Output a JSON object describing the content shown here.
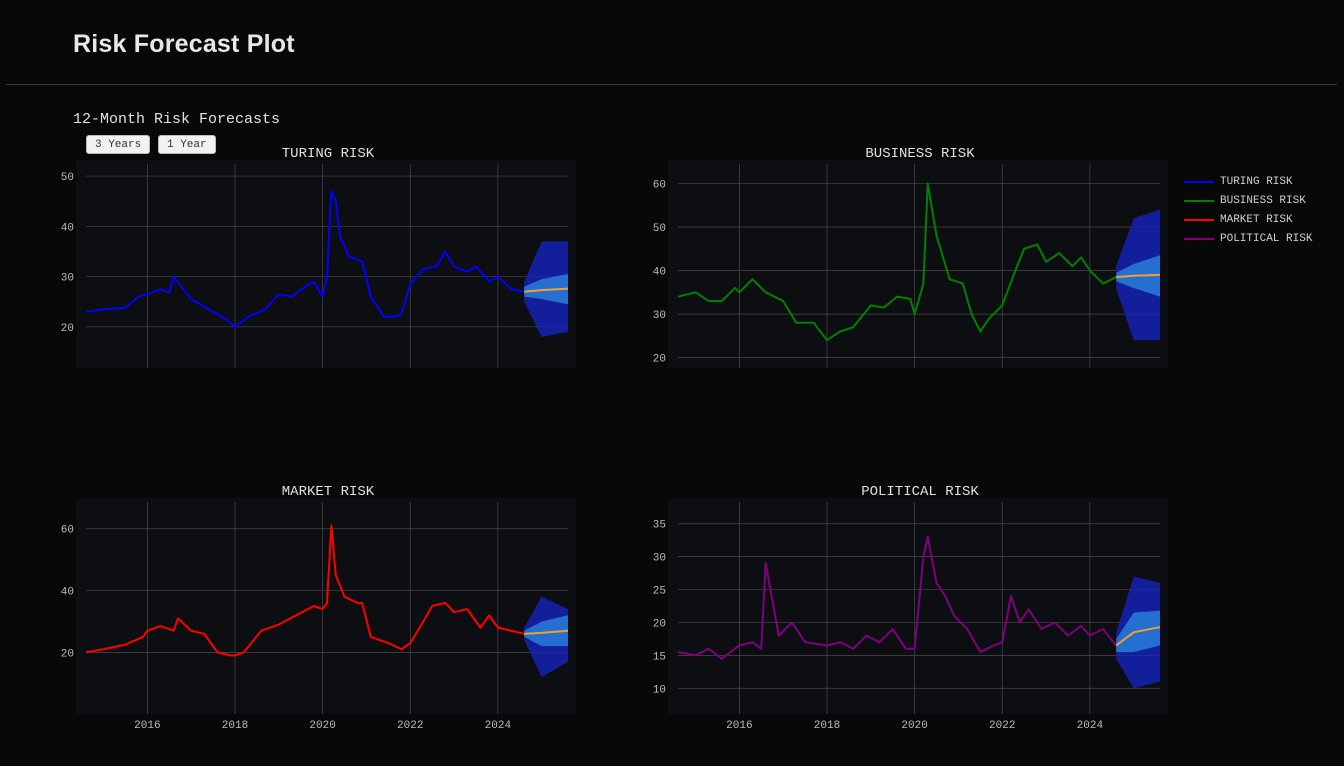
{
  "header": {
    "title": "Risk Forecast Plot"
  },
  "section": {
    "title": "12-Month Risk Forecasts"
  },
  "range_buttons": {
    "three_years": "3 Years",
    "one_year": "1 Year"
  },
  "colors": {
    "background": "#080808",
    "plot_background": "#0d0e12",
    "grid": "#4a4a4a",
    "forecast_median": "#f0a030",
    "forecast_band_inner": "#2b8be0",
    "forecast_band_outer": "#1626c8"
  },
  "legend": [
    {
      "label": "TURING RISK",
      "color": "#0000ff"
    },
    {
      "label": "BUSINESS RISK",
      "color": "#008000"
    },
    {
      "label": "MARKET RISK",
      "color": "#ff0000"
    },
    {
      "label": "POLITICAL RISK",
      "color": "#800080"
    }
  ],
  "chart_data": [
    {
      "type": "line",
      "title": "TURING RISK",
      "color": "#0000ff",
      "xlim": [
        2014.6,
        2025.6
      ],
      "ylim": [
        13,
        52
      ],
      "yticks": [
        20,
        30,
        40,
        50
      ],
      "xticks": [
        2016,
        2018,
        2020,
        2022,
        2024
      ],
      "show_xticks": false,
      "grid": true,
      "x": [
        2014.6,
        2015.0,
        2015.5,
        2015.8,
        2016.0,
        2016.3,
        2016.5,
        2016.6,
        2017.0,
        2017.5,
        2017.8,
        2018.0,
        2018.3,
        2018.7,
        2019.0,
        2019.3,
        2019.6,
        2019.8,
        2020.0,
        2020.1,
        2020.2,
        2020.3,
        2020.4,
        2020.6,
        2020.9,
        2021.1,
        2021.4,
        2021.6,
        2021.8,
        2022.0,
        2022.3,
        2022.6,
        2022.8,
        2023.0,
        2023.3,
        2023.5,
        2023.8,
        2024.0,
        2024.3,
        2024.6
      ],
      "values": [
        23,
        23.5,
        23.8,
        26,
        26.5,
        27.5,
        26.8,
        30,
        25.5,
        23,
        21.5,
        20,
        22,
        23.5,
        26.5,
        26,
        28,
        29,
        26,
        30,
        47,
        45,
        38,
        34,
        33,
        26,
        22,
        22,
        22.5,
        28.5,
        31.5,
        32,
        35,
        32,
        31,
        32,
        29,
        30,
        27.5,
        27
      ],
      "forecast": {
        "x": [
          2024.6,
          2025.0,
          2025.6
        ],
        "median": [
          27,
          27.3,
          27.6
        ],
        "inner_lo": [
          26,
          25.5,
          24.5
        ],
        "inner_hi": [
          28,
          29.5,
          30.5
        ],
        "outer_lo": [
          25,
          18,
          19
        ],
        "outer_hi": [
          29,
          37,
          37
        ]
      }
    },
    {
      "type": "line",
      "title": "BUSINESS RISK",
      "color": "#008000",
      "xlim": [
        2014.6,
        2025.6
      ],
      "ylim": [
        19,
        64
      ],
      "yticks": [
        20,
        30,
        40,
        50,
        60
      ],
      "xticks": [
        2016,
        2018,
        2020,
        2022,
        2024
      ],
      "show_xticks": false,
      "grid": true,
      "x": [
        2014.6,
        2015.0,
        2015.3,
        2015.6,
        2015.9,
        2016.0,
        2016.3,
        2016.6,
        2017.0,
        2017.3,
        2017.7,
        2018.0,
        2018.3,
        2018.6,
        2019.0,
        2019.3,
        2019.6,
        2019.9,
        2020.0,
        2020.2,
        2020.3,
        2020.5,
        2020.8,
        2021.1,
        2021.3,
        2021.5,
        2021.7,
        2022.0,
        2022.3,
        2022.5,
        2022.8,
        2023.0,
        2023.3,
        2023.6,
        2023.8,
        2024.0,
        2024.3,
        2024.6
      ],
      "values": [
        34,
        35,
        33,
        33,
        36,
        35,
        38,
        35,
        33,
        28,
        28,
        24,
        26,
        27,
        32,
        31.5,
        34,
        33.5,
        30,
        37,
        60,
        48,
        38,
        37,
        30,
        26,
        29,
        32,
        40,
        45,
        46,
        42,
        44,
        41,
        43,
        40,
        37,
        38.5
      ],
      "forecast": {
        "x": [
          2024.6,
          2025.0,
          2025.6
        ],
        "median": [
          38.5,
          38.8,
          39
        ],
        "inner_lo": [
          37.5,
          36,
          34
        ],
        "inner_hi": [
          39.5,
          41.5,
          43.5
        ],
        "outer_lo": [
          36,
          24,
          24
        ],
        "outer_hi": [
          41,
          52,
          54
        ]
      }
    },
    {
      "type": "line",
      "title": "MARKET RISK",
      "color": "#ff0000",
      "xlim": [
        2014.6,
        2025.6
      ],
      "ylim": [
        2,
        68
      ],
      "yticks": [
        20,
        40,
        60
      ],
      "xticks": [
        2016,
        2018,
        2020,
        2022,
        2024
      ],
      "show_xticks": true,
      "grid": true,
      "x": [
        2014.6,
        2015.0,
        2015.5,
        2015.9,
        2016.0,
        2016.3,
        2016.6,
        2016.7,
        2017.0,
        2017.3,
        2017.6,
        2017.9,
        2018.0,
        2018.2,
        2018.6,
        2019.0,
        2019.4,
        2019.8,
        2020.0,
        2020.1,
        2020.2,
        2020.3,
        2020.5,
        2020.8,
        2020.9,
        2021.1,
        2021.5,
        2021.8,
        2022.0,
        2022.3,
        2022.5,
        2022.8,
        2023.0,
        2023.3,
        2023.6,
        2023.8,
        2024.0,
        2024.3,
        2024.6
      ],
      "values": [
        20,
        21,
        22.5,
        25,
        27,
        28.5,
        27,
        31,
        27,
        26,
        20,
        19,
        19,
        20,
        27,
        29,
        32,
        35,
        34,
        36,
        61,
        45,
        38,
        36,
        36,
        25,
        23,
        21,
        23,
        30,
        35,
        36,
        33,
        34,
        28,
        32,
        28,
        27,
        26
      ],
      "forecast": {
        "x": [
          2024.6,
          2025.0,
          2025.6
        ],
        "median": [
          26,
          26.3,
          27
        ],
        "inner_lo": [
          25,
          22,
          22
        ],
        "inner_hi": [
          27,
          30,
          32
        ],
        "outer_lo": [
          24,
          12,
          17
        ],
        "outer_hi": [
          28,
          38,
          34
        ]
      }
    },
    {
      "type": "line",
      "title": "POLITICAL RISK",
      "color": "#800080",
      "xlim": [
        2014.6,
        2025.6
      ],
      "ylim": [
        7,
        38
      ],
      "yticks": [
        10,
        15,
        20,
        25,
        30,
        35
      ],
      "xticks": [
        2016,
        2018,
        2020,
        2022,
        2024
      ],
      "show_xticks": true,
      "grid": true,
      "x": [
        2014.6,
        2015.0,
        2015.3,
        2015.6,
        2016.0,
        2016.3,
        2016.5,
        2016.6,
        2016.9,
        2017.2,
        2017.5,
        2018.0,
        2018.3,
        2018.6,
        2018.9,
        2019.2,
        2019.5,
        2019.8,
        2020.0,
        2020.2,
        2020.3,
        2020.5,
        2020.7,
        2020.9,
        2021.2,
        2021.5,
        2021.8,
        2022.0,
        2022.2,
        2022.4,
        2022.6,
        2022.9,
        2023.2,
        2023.5,
        2023.8,
        2024.0,
        2024.3,
        2024.6
      ],
      "values": [
        15.5,
        15,
        16,
        14.5,
        16.5,
        17,
        16,
        29,
        18,
        20,
        17,
        16.5,
        17,
        16,
        18,
        17,
        19,
        16,
        16,
        30,
        33,
        26,
        24,
        21,
        19,
        15.5,
        16.5,
        17,
        24,
        20,
        22,
        19,
        20,
        18,
        19.5,
        18,
        19,
        16.5
      ],
      "forecast": {
        "x": [
          2024.6,
          2025.0,
          2025.6
        ],
        "median": [
          16.5,
          18.5,
          19.3
        ],
        "inner_lo": [
          15.5,
          15.5,
          16.5
        ],
        "inner_hi": [
          17.5,
          21.5,
          21.8
        ],
        "outer_lo": [
          14.5,
          10,
          11
        ],
        "outer_hi": [
          18.5,
          27,
          26
        ]
      }
    }
  ]
}
